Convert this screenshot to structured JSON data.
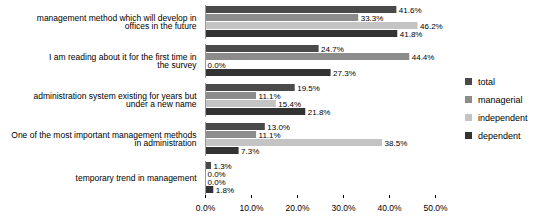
{
  "chart_data": {
    "type": "bar",
    "orientation": "horizontal",
    "categories": [
      "management method which will develop in offices in the future",
      "I am reading about it for the first time in the survey",
      "administration system existing for years but under a new name",
      "One of the most important management methods in administration",
      "temporary trend in management"
    ],
    "series": [
      {
        "name": "total",
        "color": "#4a4a4a",
        "values": [
          41.6,
          24.7,
          19.5,
          13.0,
          1.3
        ],
        "value_labels": [
          "41.6%",
          "24.7%",
          "19.5%",
          "13.0%",
          "1.3%"
        ]
      },
      {
        "name": "managerial",
        "color": "#8c8c8c",
        "values": [
          33.3,
          44.4,
          11.1,
          11.1,
          0.0
        ],
        "value_labels": [
          "33.3%",
          "44.4%",
          "11.1%",
          "11.1%",
          "0.0%"
        ]
      },
      {
        "name": "independent",
        "color": "#c4c4c4",
        "values": [
          46.2,
          0.0,
          15.4,
          38.5,
          0.0
        ],
        "value_labels": [
          "46.2%",
          "0.0%",
          "15.4%",
          "38.5%",
          "0.0%"
        ]
      },
      {
        "name": "dependent",
        "color": "#333333",
        "values": [
          41.8,
          27.3,
          21.8,
          7.3,
          1.8
        ],
        "value_labels": [
          "41.8%",
          "27.3%",
          "21.8%",
          "7.3%",
          "1.8%"
        ]
      }
    ],
    "xlim": [
      0,
      50
    ],
    "xticks": [
      {
        "value": 0,
        "label": "0.0%"
      },
      {
        "value": 10,
        "label": "10.0%"
      },
      {
        "value": 20,
        "label": "20.0%"
      },
      {
        "value": 30,
        "label": "30.0%"
      },
      {
        "value": 40,
        "label": "40.0%"
      },
      {
        "value": 50,
        "label": "50.0%"
      }
    ],
    "grid": false,
    "legend": "right",
    "data_labels": true
  }
}
